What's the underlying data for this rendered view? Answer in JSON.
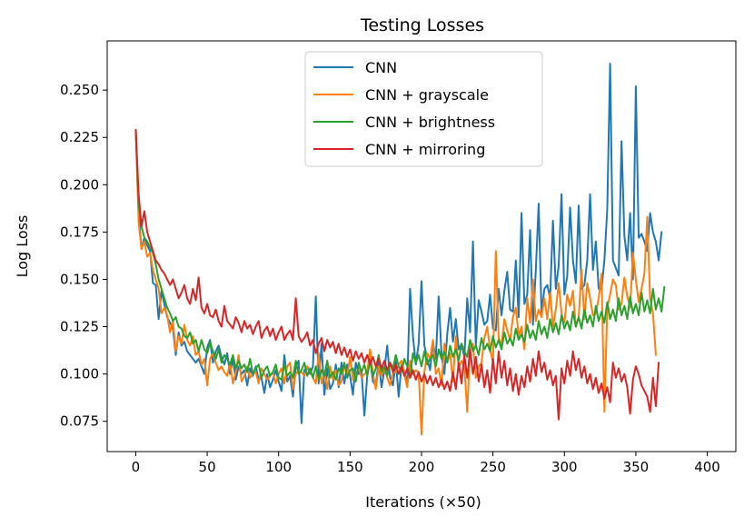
{
  "chart_data": {
    "type": "line",
    "title": "Testing Losses",
    "xlabel": "Iterations (×50)",
    "ylabel": "Log Loss",
    "xlim": [
      -20,
      420
    ],
    "ylim": [
      0.059,
      0.276
    ],
    "xticks": [
      0,
      50,
      100,
      150,
      200,
      250,
      300,
      350,
      400
    ],
    "yticks": [
      0.075,
      0.1,
      0.125,
      0.15,
      0.175,
      0.2,
      0.225,
      0.25
    ],
    "ytick_labels": [
      "0.075",
      "0.100",
      "0.125",
      "0.150",
      "0.175",
      "0.200",
      "0.225",
      "0.250"
    ],
    "legend_position": "upper-center",
    "grid": false,
    "x_step": 2,
    "series": [
      {
        "name": "CNN",
        "color": "#1f77b4",
        "values": [
          0.229,
          0.185,
          0.166,
          0.172,
          0.168,
          0.165,
          0.148,
          0.147,
          0.129,
          0.144,
          0.137,
          0.13,
          0.127,
          0.124,
          0.11,
          0.122,
          0.115,
          0.117,
          0.112,
          0.11,
          0.108,
          0.106,
          0.108,
          0.104,
          0.1,
          0.114,
          0.118,
          0.106,
          0.112,
          0.115,
          0.109,
          0.105,
          0.111,
          0.1,
          0.108,
          0.097,
          0.104,
          0.1,
          0.102,
          0.094,
          0.103,
          0.099,
          0.104,
          0.097,
          0.098,
          0.09,
          0.1,
          0.093,
          0.097,
          0.102,
          0.096,
          0.091,
          0.11,
          0.096,
          0.099,
          0.088,
          0.104,
          0.107,
          0.074,
          0.102,
          0.104,
          0.1,
          0.104,
          0.141,
          0.095,
          0.116,
          0.089,
          0.103,
          0.092,
          0.095,
          0.105,
          0.093,
          0.106,
          0.095,
          0.105,
          0.099,
          0.089,
          0.106,
          0.1,
          0.102,
          0.078,
          0.099,
          0.108,
          0.096,
          0.094,
          0.107,
          0.093,
          0.102,
          0.115,
          0.098,
          0.094,
          0.107,
          0.088,
          0.105,
          0.1,
          0.096,
          0.145,
          0.12,
          0.105,
          0.116,
          0.149,
          0.115,
          0.108,
          0.102,
          0.117,
          0.108,
          0.141,
          0.11,
          0.1,
          0.121,
          0.135,
          0.117,
          0.129,
          0.113,
          0.116,
          0.109,
          0.14,
          0.122,
          0.17,
          0.115,
          0.139,
          0.133,
          0.126,
          0.128,
          0.142,
          0.124,
          0.123,
          0.145,
          0.131,
          0.144,
          0.154,
          0.134,
          0.133,
          0.16,
          0.13,
          0.185,
          0.137,
          0.142,
          0.176,
          0.126,
          0.155,
          0.19,
          0.132,
          0.145,
          0.147,
          0.14,
          0.181,
          0.145,
          0.157,
          0.195,
          0.142,
          0.152,
          0.188,
          0.16,
          0.148,
          0.189,
          0.145,
          0.147,
          0.16,
          0.195,
          0.155,
          0.17,
          0.145,
          0.145,
          0.16,
          0.187,
          0.264,
          0.16,
          0.156,
          0.152,
          0.223,
          0.173,
          0.16,
          0.185,
          0.15,
          0.252,
          0.172,
          0.174,
          0.17,
          0.165,
          0.185,
          0.175,
          0.17,
          0.16,
          0.175
        ]
      },
      {
        "name": "CNN + grayscale",
        "color": "#ff7f0e",
        "values": [
          0.229,
          0.18,
          0.166,
          0.17,
          0.162,
          0.164,
          0.155,
          0.15,
          0.145,
          0.132,
          0.135,
          0.131,
          0.122,
          0.128,
          0.112,
          0.12,
          0.116,
          0.126,
          0.118,
          0.115,
          0.12,
          0.11,
          0.112,
          0.105,
          0.108,
          0.094,
          0.108,
          0.111,
          0.106,
          0.102,
          0.104,
          0.101,
          0.099,
          0.106,
          0.095,
          0.101,
          0.11,
          0.096,
          0.099,
          0.104,
          0.098,
          0.1,
          0.101,
          0.095,
          0.103,
          0.1,
          0.097,
          0.099,
          0.101,
          0.095,
          0.1,
          0.103,
          0.095,
          0.104,
          0.106,
          0.092,
          0.1,
          0.102,
          0.101,
          0.099,
          0.104,
          0.102,
          0.098,
          0.095,
          0.111,
          0.095,
          0.101,
          0.092,
          0.104,
          0.097,
          0.102,
          0.094,
          0.096,
          0.105,
          0.099,
          0.109,
          0.097,
          0.099,
          0.104,
          0.098,
          0.1,
          0.101,
          0.113,
          0.1,
          0.092,
          0.104,
          0.099,
          0.103,
          0.098,
          0.094,
          0.101,
          0.101,
          0.105,
          0.107,
          0.1,
          0.093,
          0.107,
          0.1,
          0.102,
          0.101,
          0.068,
          0.101,
          0.111,
          0.108,
          0.118,
          0.1,
          0.103,
          0.094,
          0.116,
          0.106,
          0.111,
          0.096,
          0.12,
          0.103,
          0.107,
          0.104,
          0.08,
          0.114,
          0.116,
          0.098,
          0.104,
          0.106,
          0.119,
          0.125,
          0.113,
          0.106,
          0.165,
          0.119,
          0.115,
          0.129,
          0.123,
          0.118,
          0.13,
          0.135,
          0.12,
          0.125,
          0.113,
          0.14,
          0.127,
          0.15,
          0.128,
          0.134,
          0.13,
          0.14,
          0.129,
          0.143,
          0.125,
          0.134,
          0.148,
          0.132,
          0.127,
          0.142,
          0.136,
          0.144,
          0.125,
          0.13,
          0.155,
          0.129,
          0.148,
          0.14,
          0.131,
          0.132,
          0.14,
          0.153,
          0.08,
          0.135,
          0.142,
          0.15,
          0.147,
          0.134,
          0.137,
          0.151,
          0.141,
          0.135,
          0.164,
          0.15,
          0.138,
          0.145,
          0.153,
          0.183,
          0.14,
          0.132,
          0.11
        ]
      },
      {
        "name": "CNN + brightness",
        "color": "#2ca02c",
        "values": [
          0.229,
          0.19,
          0.178,
          0.172,
          0.17,
          0.167,
          0.164,
          0.158,
          0.15,
          0.145,
          0.14,
          0.135,
          0.132,
          0.128,
          0.13,
          0.125,
          0.124,
          0.12,
          0.119,
          0.122,
          0.116,
          0.118,
          0.112,
          0.118,
          0.113,
          0.111,
          0.117,
          0.112,
          0.108,
          0.113,
          0.106,
          0.11,
          0.108,
          0.105,
          0.11,
          0.103,
          0.107,
          0.103,
          0.105,
          0.101,
          0.108,
          0.1,
          0.103,
          0.105,
          0.098,
          0.102,
          0.104,
          0.099,
          0.101,
          0.105,
          0.098,
          0.097,
          0.105,
          0.099,
          0.101,
          0.098,
          0.107,
          0.1,
          0.102,
          0.106,
          0.099,
          0.103,
          0.098,
          0.104,
          0.097,
          0.102,
          0.099,
          0.107,
          0.098,
          0.101,
          0.097,
          0.103,
          0.1,
          0.106,
          0.098,
          0.102,
          0.103,
          0.096,
          0.106,
          0.101,
          0.105,
          0.099,
          0.107,
          0.099,
          0.103,
          0.11,
          0.101,
          0.104,
          0.099,
          0.106,
          0.103,
          0.11,
          0.104,
          0.101,
          0.108,
          0.104,
          0.098,
          0.111,
          0.106,
          0.11,
          0.104,
          0.112,
          0.105,
          0.108,
          0.11,
          0.104,
          0.113,
          0.108,
          0.112,
          0.106,
          0.115,
          0.109,
          0.113,
          0.107,
          0.116,
          0.112,
          0.109,
          0.118,
          0.112,
          0.115,
          0.11,
          0.119,
          0.113,
          0.116,
          0.112,
          0.12,
          0.114,
          0.118,
          0.113,
          0.122,
          0.116,
          0.119,
          0.115,
          0.124,
          0.118,
          0.121,
          0.117,
          0.126,
          0.119,
          0.123,
          0.118,
          0.128,
          0.121,
          0.125,
          0.119,
          0.129,
          0.122,
          0.127,
          0.121,
          0.131,
          0.124,
          0.128,
          0.123,
          0.133,
          0.125,
          0.13,
          0.124,
          0.134,
          0.127,
          0.131,
          0.125,
          0.136,
          0.128,
          0.133,
          0.127,
          0.138,
          0.129,
          0.134,
          0.128,
          0.14,
          0.131,
          0.136,
          0.129,
          0.141,
          0.132,
          0.137,
          0.131,
          0.143,
          0.133,
          0.139,
          0.132,
          0.145,
          0.134,
          0.14,
          0.133,
          0.146
        ]
      },
      {
        "name": "CNN + mirroring",
        "color": "#d62728",
        "values": [
          0.229,
          0.195,
          0.178,
          0.186,
          0.175,
          0.17,
          0.165,
          0.16,
          0.158,
          0.155,
          0.153,
          0.15,
          0.147,
          0.15,
          0.145,
          0.14,
          0.143,
          0.147,
          0.14,
          0.137,
          0.145,
          0.139,
          0.151,
          0.135,
          0.132,
          0.137,
          0.131,
          0.13,
          0.134,
          0.128,
          0.125,
          0.136,
          0.128,
          0.126,
          0.124,
          0.13,
          0.127,
          0.122,
          0.128,
          0.124,
          0.126,
          0.121,
          0.125,
          0.128,
          0.119,
          0.123,
          0.125,
          0.12,
          0.124,
          0.118,
          0.122,
          0.125,
          0.118,
          0.121,
          0.123,
          0.118,
          0.14,
          0.12,
          0.117,
          0.119,
          0.122,
          0.115,
          0.118,
          0.111,
          0.116,
          0.119,
          0.112,
          0.118,
          0.114,
          0.117,
          0.111,
          0.116,
          0.11,
          0.114,
          0.109,
          0.113,
          0.107,
          0.112,
          0.108,
          0.111,
          0.106,
          0.11,
          0.105,
          0.109,
          0.104,
          0.108,
          0.103,
          0.107,
          0.102,
          0.106,
          0.101,
          0.105,
          0.1,
          0.104,
          0.099,
          0.103,
          0.098,
          0.102,
          0.097,
          0.101,
          0.096,
          0.1,
          0.095,
          0.099,
          0.094,
          0.098,
          0.093,
          0.097,
          0.092,
          0.096,
          0.091,
          0.101,
          0.092,
          0.106,
          0.095,
          0.11,
          0.098,
          0.113,
          0.1,
          0.109,
          0.096,
          0.105,
          0.093,
          0.102,
          0.09,
          0.108,
          0.095,
          0.112,
          0.098,
          0.107,
          0.094,
          0.103,
          0.091,
          0.1,
          0.089,
          0.099,
          0.093,
          0.104,
          0.096,
          0.108,
          0.099,
          0.112,
          0.101,
          0.106,
          0.097,
          0.102,
          0.094,
          0.099,
          0.076,
          0.103,
          0.095,
          0.107,
          0.099,
          0.112,
          0.102,
          0.108,
          0.098,
          0.104,
          0.095,
          0.1,
          0.092,
          0.098,
          0.09,
          0.095,
          0.087,
          0.093,
          0.085,
          0.106,
          0.098,
          0.103,
          0.096,
          0.1,
          0.093,
          0.079,
          0.097,
          0.104,
          0.1,
          0.094,
          0.091,
          0.088,
          0.08,
          0.098,
          0.083,
          0.106
        ]
      }
    ]
  }
}
